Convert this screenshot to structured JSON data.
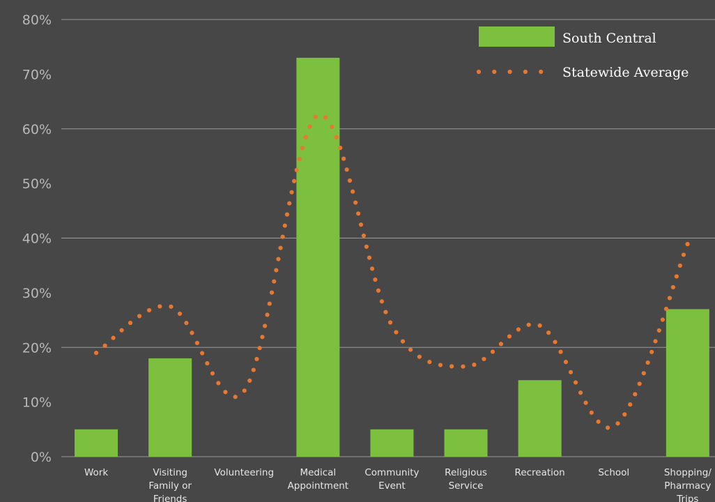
{
  "chart_data": {
    "type": "bar",
    "categories": [
      [
        "Work"
      ],
      [
        "Visiting",
        "Family or",
        "Friends"
      ],
      [
        "Volunteering"
      ],
      [
        "Medical",
        "Appointment"
      ],
      [
        "Community",
        "Event"
      ],
      [
        "Religious",
        "Service"
      ],
      [
        "Recreation"
      ],
      [
        "School"
      ],
      [
        "Shopping/",
        "Pharmacy",
        "Trips"
      ]
    ],
    "series": [
      {
        "name": "South Central",
        "kind": "bar",
        "color": "#7dbf3f",
        "values": [
          5,
          18,
          0,
          73,
          5,
          5,
          14,
          0,
          27
        ]
      },
      {
        "name": "Statewide Average",
        "kind": "dotted-line",
        "color": "#e8782f",
        "values": [
          19,
          27.5,
          12,
          62.5,
          24,
          16.5,
          24,
          5.5,
          39
        ]
      }
    ],
    "yticks": [
      "0%",
      "10%",
      "20%",
      "30%",
      "40%",
      "50%",
      "60%",
      "70%",
      "80%"
    ],
    "ylim": [
      0,
      80
    ],
    "grid": true,
    "legend_position": "top-right"
  }
}
